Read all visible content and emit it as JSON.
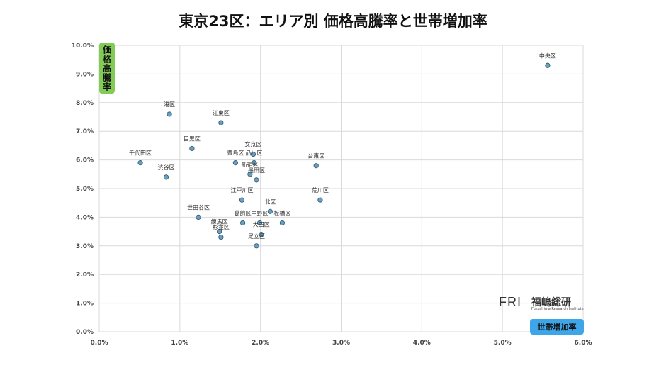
{
  "chart_data": {
    "type": "scatter",
    "title": "東京23区：エリア別 価格高騰率と世帯増加率",
    "xlabel": "世帯増加率",
    "ylabel": "価格高騰率",
    "xlim": [
      0,
      6.0
    ],
    "ylim": [
      0,
      10.0
    ],
    "x_ticks": [
      "0.0%",
      "1.0%",
      "2.0%",
      "3.0%",
      "4.0%",
      "5.0%",
      "6.0%"
    ],
    "y_ticks": [
      "0.0%",
      "1.0%",
      "2.0%",
      "3.0%",
      "4.0%",
      "5.0%",
      "6.0%",
      "7.0%",
      "8.0%",
      "9.0%",
      "10.0%"
    ],
    "grid": true,
    "point_color": "#6a9fc0",
    "points": [
      {
        "label": "中央区",
        "x": 5.56,
        "y": 9.3
      },
      {
        "label": "港区",
        "x": 0.87,
        "y": 7.6
      },
      {
        "label": "江東区",
        "x": 1.51,
        "y": 7.3
      },
      {
        "label": "目黒区",
        "x": 1.15,
        "y": 6.4
      },
      {
        "label": "文京区",
        "x": 1.91,
        "y": 6.2
      },
      {
        "label": "豊島区",
        "x": 1.69,
        "y": 5.9
      },
      {
        "label": "品川区",
        "x": 1.92,
        "y": 5.9
      },
      {
        "label": "千代田区",
        "x": 0.51,
        "y": 5.9
      },
      {
        "label": "台東区",
        "x": 2.69,
        "y": 5.8
      },
      {
        "label": "新宿区",
        "x": 1.87,
        "y": 5.5
      },
      {
        "label": "渋谷区",
        "x": 0.83,
        "y": 5.4
      },
      {
        "label": "墨田区",
        "x": 1.95,
        "y": 5.3
      },
      {
        "label": "江戸川区",
        "x": 1.77,
        "y": 4.6
      },
      {
        "label": "荒川区",
        "x": 2.74,
        "y": 4.6
      },
      {
        "label": "北区",
        "x": 2.12,
        "y": 4.2
      },
      {
        "label": "世田谷区",
        "x": 1.23,
        "y": 4.0
      },
      {
        "label": "葛飾区",
        "x": 1.78,
        "y": 3.8
      },
      {
        "label": "中野区",
        "x": 1.99,
        "y": 3.8
      },
      {
        "label": "板橋区",
        "x": 2.27,
        "y": 3.8
      },
      {
        "label": "練馬区",
        "x": 1.49,
        "y": 3.5
      },
      {
        "label": "大田区",
        "x": 2.01,
        "y": 3.4
      },
      {
        "label": "杉並区",
        "x": 1.51,
        "y": 3.3
      },
      {
        "label": "足立区",
        "x": 1.95,
        "y": 3.0
      }
    ]
  },
  "logo": {
    "mark": "FRI",
    "name_jp": "福嶋総研",
    "name_en": "Fukushima Research Institute"
  }
}
